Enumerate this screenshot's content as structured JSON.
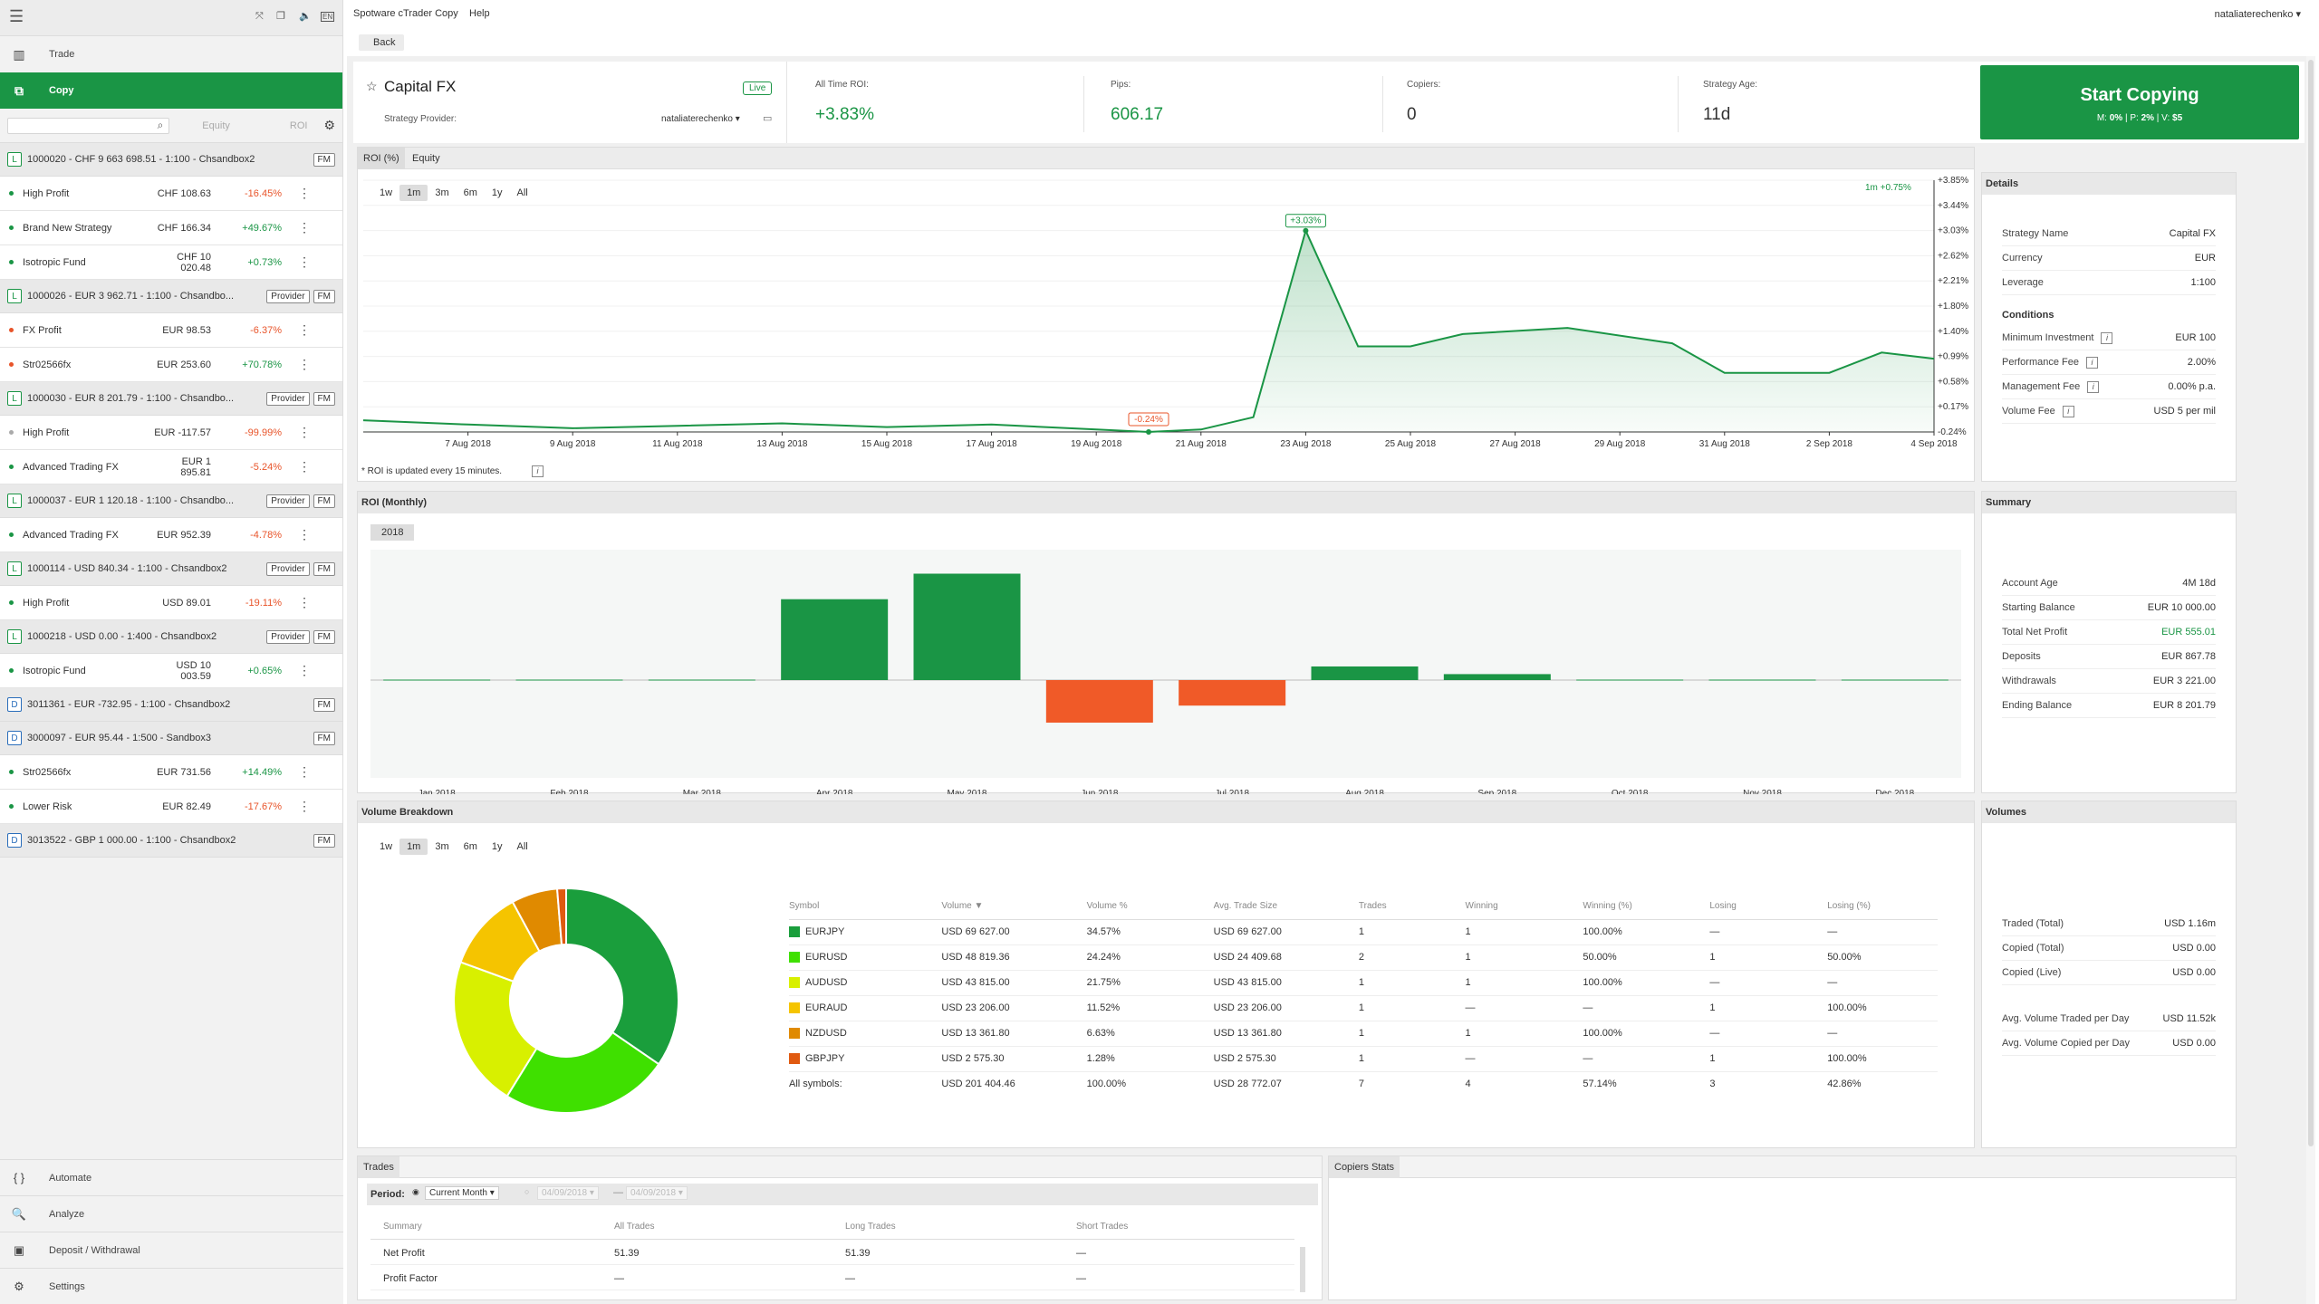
{
  "sidebar": {
    "nav_trade": "Trade",
    "nav_copy": "Copy",
    "col_equity": "Equity",
    "col_roi": "ROI",
    "items": [
      {
        "kind": "acc",
        "letter": "L",
        "name": "1000020 - CHF 9 663 698.51 - 1:100 - Chsandbox2",
        "tags": [
          "FM"
        ]
      },
      {
        "kind": "strat",
        "name": "High Profit",
        "equity": "CHF 108.63",
        "roi": "-16.45%",
        "neg": true,
        "dot": "#1a9545"
      },
      {
        "kind": "strat",
        "name": "Brand New Strategy",
        "equity": "CHF 166.34",
        "roi": "+49.67%",
        "neg": false,
        "dot": "#1a9545"
      },
      {
        "kind": "strat",
        "name": "Isotropic Fund",
        "equity": "CHF 10 020.48",
        "roi": "+0.73%",
        "neg": false,
        "dot": "#1a9545"
      },
      {
        "kind": "acc",
        "letter": "L",
        "name": "1000026 - EUR 3 962.71 - 1:100 - Chsandbo...",
        "tags": [
          "Provider",
          "FM"
        ]
      },
      {
        "kind": "strat",
        "name": "FX Profit",
        "equity": "EUR 98.53",
        "roi": "-6.37%",
        "neg": true,
        "dot": "#e8542a"
      },
      {
        "kind": "strat",
        "name": "Str02566fx",
        "equity": "EUR 253.60",
        "roi": "+70.78%",
        "neg": false,
        "dot": "#e8542a"
      },
      {
        "kind": "acc",
        "letter": "L",
        "name": "1000030 - EUR 8 201.79 - 1:100 - Chsandbo...",
        "tags": [
          "Provider",
          "FM"
        ]
      },
      {
        "kind": "strat",
        "name": "High Profit",
        "equity": "EUR -117.57",
        "roi": "-99.99%",
        "neg": true,
        "dot": "#aaa"
      },
      {
        "kind": "strat",
        "name": "Advanced Trading FX",
        "equity": "EUR 1 895.81",
        "roi": "-5.24%",
        "neg": true,
        "dot": "#1a9545"
      },
      {
        "kind": "acc",
        "letter": "L",
        "name": "1000037 - EUR 1 120.18 - 1:100 - Chsandbo...",
        "tags": [
          "Provider",
          "FM"
        ]
      },
      {
        "kind": "strat",
        "name": "Advanced Trading FX",
        "equity": "EUR 952.39",
        "roi": "-4.78%",
        "neg": true,
        "dot": "#1a9545"
      },
      {
        "kind": "acc",
        "letter": "L",
        "name": "1000114 - USD 840.34 - 1:100 - Chsandbox2",
        "tags": [
          "Provider",
          "FM"
        ]
      },
      {
        "kind": "strat",
        "name": "High Profit",
        "equity": "USD 89.01",
        "roi": "-19.11%",
        "neg": true,
        "dot": "#1a9545"
      },
      {
        "kind": "acc",
        "letter": "L",
        "name": "1000218 - USD 0.00 - 1:400 - Chsandbox2",
        "tags": [
          "Provider",
          "FM"
        ]
      },
      {
        "kind": "strat",
        "name": "Isotropic Fund",
        "equity": "USD 10 003.59",
        "roi": "+0.65%",
        "neg": false,
        "dot": "#1a9545"
      },
      {
        "kind": "acc",
        "letter": "D",
        "name": "3011361 - EUR -732.95 - 1:100 - Chsandbox2",
        "tags": [
          "FM"
        ]
      },
      {
        "kind": "acc",
        "letter": "D",
        "name": "3000097 - EUR 95.44 - 1:500 - Sandbox3",
        "tags": [
          "FM"
        ]
      },
      {
        "kind": "strat",
        "name": "Str02566fx",
        "equity": "EUR 731.56",
        "roi": "+14.49%",
        "neg": false,
        "dot": "#1a9545"
      },
      {
        "kind": "strat",
        "name": "Lower Risk",
        "equity": "EUR 82.49",
        "roi": "-17.67%",
        "neg": true,
        "dot": "#1a9545"
      },
      {
        "kind": "acc",
        "letter": "D",
        "name": "3013522 - GBP 1 000.00 - 1:100 - Chsandbox2",
        "tags": [
          "FM"
        ]
      }
    ],
    "bottom_nav": [
      "Automate",
      "Analyze",
      "Deposit / Withdrawal",
      "Settings"
    ],
    "top_icons": [
      "EN"
    ]
  },
  "topbar": {
    "app_title": "Spotware cTrader Copy",
    "help": "Help",
    "user": "nataliaterechenko",
    "back": "Back"
  },
  "header": {
    "name": "Capital FX",
    "live": "Live",
    "provider_label": "Strategy Provider:",
    "provider": "nataliaterechenko",
    "roi_label": "All Time ROI:",
    "roi": "+3.83%",
    "pips_label": "Pips:",
    "pips": "606.17",
    "copiers_label": "Copiers:",
    "copiers": "0",
    "age_label": "Strategy Age:",
    "age": "11d",
    "cta": "Start Copying",
    "cta_sub_m": "M:",
    "cta_sub_m_v": "0%",
    "cta_sub_p": "P:",
    "cta_sub_p_v": "2%",
    "cta_sub_v": "V:",
    "cta_sub_v_v": "$5"
  },
  "roi_tabs": [
    "ROI (%)",
    "Equity"
  ],
  "ranges": [
    "1w",
    "1m",
    "3m",
    "6m",
    "1y",
    "All"
  ],
  "roi_chart": {
    "range_badge": "1m +0.75%",
    "note": "* ROI is updated every 15 minutes.",
    "x_labels": [
      "7 Aug 2018",
      "9 Aug 2018",
      "11 Aug 2018",
      "13 Aug 2018",
      "15 Aug 2018",
      "17 Aug 2018",
      "19 Aug 2018",
      "21 Aug 2018",
      "23 Aug 2018",
      "25 Aug 2018",
      "27 Aug 2018",
      "29 Aug 2018",
      "31 Aug 2018",
      "2 Sep 2018",
      "4 Sep 2018"
    ],
    "y_labels": [
      "+3.85%",
      "+3.44%",
      "+3.03%",
      "+2.62%",
      "+2.21%",
      "+1.80%",
      "+1.40%",
      "+0.99%",
      "+0.58%",
      "+0.17%",
      "-0.24%"
    ],
    "max_label": "+3.03%",
    "min_label": "-0.24%"
  },
  "chart_data": [
    {
      "type": "area",
      "title": "ROI (%)",
      "x": [
        "5 Aug 2018",
        "7 Aug 2018",
        "9 Aug 2018",
        "11 Aug 2018",
        "13 Aug 2018",
        "15 Aug 2018",
        "17 Aug 2018",
        "19 Aug 2018",
        "20 Aug 2018",
        "21 Aug 2018",
        "22 Aug 2018",
        "23 Aug 2018",
        "24 Aug 2018",
        "25 Aug 2018",
        "26 Aug 2018",
        "28 Aug 2018",
        "30 Aug 2018",
        "31 Aug 2018",
        "2 Sep 2018",
        "3 Sep 2018",
        "4 Sep 2018"
      ],
      "values": [
        -0.05,
        -0.12,
        -0.18,
        -0.14,
        -0.1,
        -0.16,
        -0.12,
        -0.2,
        -0.24,
        -0.2,
        0.0,
        3.03,
        1.15,
        1.15,
        1.35,
        1.45,
        1.2,
        0.72,
        0.72,
        1.05,
        0.95
      ],
      "ylim": [
        -0.24,
        3.85
      ]
    },
    {
      "type": "bar",
      "title": "ROI (Monthly)",
      "categories": [
        "Jan 2018",
        "Feb 2018",
        "Mar 2018",
        "Apr 2018",
        "May 2018",
        "Jun 2018",
        "Jul 2018",
        "Aug 2018",
        "Sep 2018",
        "Oct 2018",
        "Nov 2018",
        "Dec 2018"
      ],
      "values": [
        0,
        0,
        0,
        9.5,
        12.5,
        -5.0,
        -3.0,
        1.6,
        0.7,
        0,
        0,
        0
      ],
      "year": "2018"
    },
    {
      "type": "pie",
      "title": "Volume Breakdown",
      "categories": [
        "EURJPY",
        "EURUSD",
        "AUDUSD",
        "EURAUD",
        "NZDUSD",
        "GBPJPY"
      ],
      "values": [
        34.57,
        24.24,
        21.75,
        11.52,
        6.63,
        1.28
      ],
      "colors": [
        "#1a9e3c",
        "#3fe000",
        "#d8f000",
        "#f5c400",
        "#e08a00",
        "#e05a10"
      ]
    }
  ],
  "volume_table": {
    "headers": [
      "Symbol",
      "Volume ▼",
      "Volume %",
      "Avg. Trade Size",
      "Trades",
      "Winning",
      "Winning (%)",
      "Losing",
      "Losing (%)"
    ],
    "rows": [
      [
        "EURJPY",
        "USD 69 627.00",
        "34.57%",
        "USD 69 627.00",
        "1",
        "1",
        "100.00%",
        "—",
        "—"
      ],
      [
        "EURUSD",
        "USD 48 819.36",
        "24.24%",
        "USD 24 409.68",
        "2",
        "1",
        "50.00%",
        "1",
        "50.00%"
      ],
      [
        "AUDUSD",
        "USD 43 815.00",
        "21.75%",
        "USD 43 815.00",
        "1",
        "1",
        "100.00%",
        "—",
        "—"
      ],
      [
        "EURAUD",
        "USD 23 206.00",
        "11.52%",
        "USD 23 206.00",
        "1",
        "—",
        "—",
        "1",
        "100.00%"
      ],
      [
        "NZDUSD",
        "USD 13 361.80",
        "6.63%",
        "USD 13 361.80",
        "1",
        "1",
        "100.00%",
        "—",
        "—"
      ],
      [
        "GBPJPY",
        "USD 2 575.30",
        "1.28%",
        "USD 2 575.30",
        "1",
        "—",
        "—",
        "1",
        "100.00%"
      ]
    ],
    "total": [
      "All symbols:",
      "USD 201 404.46",
      "100.00%",
      "USD 28 772.07",
      "7",
      "4",
      "57.14%",
      "3",
      "42.86%"
    ]
  },
  "details": {
    "title": "Details",
    "rows": [
      [
        "Strategy Name",
        "Capital FX"
      ],
      [
        "Currency",
        "EUR"
      ],
      [
        "Leverage",
        "1:100"
      ]
    ],
    "conditions_title": "Conditions",
    "conditions": [
      [
        "Minimum Investment",
        "EUR 100"
      ],
      [
        "Performance Fee",
        "2.00%"
      ],
      [
        "Management Fee",
        "0.00% p.a."
      ],
      [
        "Volume Fee",
        "USD 5 per mil"
      ]
    ]
  },
  "summary": {
    "title": "Summary",
    "rows": [
      [
        "Account Age",
        "4M 18d"
      ],
      [
        "Starting Balance",
        "EUR 10 000.00"
      ],
      [
        "Total Net Profit",
        "EUR 555.01"
      ],
      [
        "Deposits",
        "EUR 867.78"
      ],
      [
        "Withdrawals",
        "EUR 3 221.00"
      ],
      [
        "Ending Balance",
        "EUR 8 201.79"
      ]
    ]
  },
  "volumes": {
    "title": "Volumes",
    "rows": [
      [
        "Traded (Total)",
        "USD 1.16m"
      ],
      [
        "Copied (Total)",
        "USD 0.00"
      ],
      [
        "Copied (Live)",
        "USD 0.00"
      ]
    ],
    "rows2": [
      [
        "Avg. Volume Traded per Day",
        "USD 11.52k"
      ],
      [
        "Avg. Volume Copied per Day",
        "USD 0.00"
      ]
    ]
  },
  "monthly_title": "ROI (Monthly)",
  "volume_title": "Volume Breakdown",
  "trades": {
    "tab": "Trades",
    "period_label": "Period:",
    "period": "Current Month",
    "date_from": "04/09/2018",
    "date_to": "04/09/2018",
    "headers": [
      "Summary",
      "All Trades",
      "Long Trades",
      "Short Trades"
    ],
    "rows": [
      [
        "Net Profit",
        "51.39",
        "51.39",
        "—"
      ],
      [
        "Profit Factor",
        "—",
        "—",
        "—"
      ]
    ]
  },
  "copiers_stats": "Copiers Stats"
}
